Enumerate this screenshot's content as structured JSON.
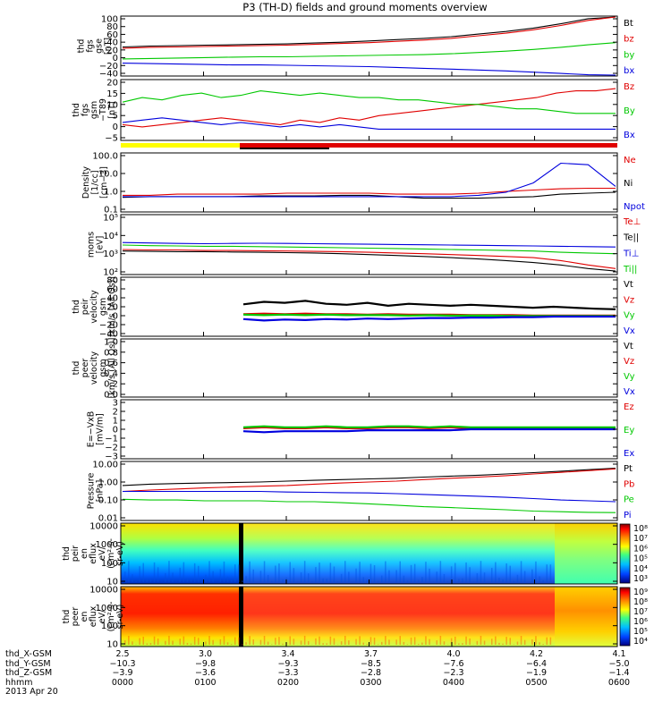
{
  "title": "P3 (TH-D) fields and ground moments overview",
  "colors": {
    "black": "#000000",
    "red": "#e00000",
    "green": "#00c800",
    "blue": "#0000dd",
    "yellow": "#ffff00"
  },
  "chart_data": [
    {
      "type": "line",
      "id": "p0",
      "ylabel": [
        "thd",
        "fgs",
        "gse",
        "[nT]"
      ],
      "yticks": [
        "100",
        "80",
        "60",
        "40",
        "20",
        "0",
        "−20",
        "−40"
      ],
      "ylim": [
        -40,
        100
      ],
      "series": [
        {
          "name": "Bt",
          "color": "#000000",
          "values": [
            28,
            30,
            31,
            32,
            33,
            34,
            35,
            37,
            39,
            42,
            45,
            48,
            52,
            58,
            64,
            72,
            82,
            94,
            102
          ]
        },
        {
          "name": "bz",
          "color": "#e00000",
          "values": [
            25,
            27,
            28,
            29,
            30,
            31,
            32,
            34,
            36,
            38,
            41,
            44,
            48,
            54,
            60,
            68,
            78,
            90,
            100
          ]
        },
        {
          "name": "by",
          "color": "#00c800",
          "values": [
            0,
            1,
            2,
            3,
            4,
            5,
            5,
            6,
            7,
            8,
            9,
            10,
            12,
            15,
            18,
            22,
            27,
            33,
            38
          ]
        },
        {
          "name": "bx",
          "color": "#0000dd",
          "values": [
            -10,
            -11,
            -12,
            -13,
            -14,
            -14,
            -15,
            -16,
            -17,
            -18,
            -20,
            -22,
            -24,
            -26,
            -28,
            -31,
            -34,
            -37,
            -40
          ]
        }
      ],
      "legend": [
        [
          "Bt",
          "#000000"
        ],
        [
          "bz",
          "#e00000"
        ],
        [
          "by",
          "#00c800"
        ],
        [
          "bx",
          "#0000dd"
        ]
      ]
    },
    {
      "type": "line",
      "id": "p1",
      "ylabel": [
        "thd",
        "fgs",
        "gsm",
        "−T89",
        "[nT]"
      ],
      "yticks": [
        "20",
        "15",
        "10",
        "5",
        "0",
        "−5"
      ],
      "ylim": [
        -7,
        20
      ],
      "series": [
        {
          "name": "Bz",
          "color": "#e00000",
          "values": [
            0,
            -1,
            0,
            1,
            2,
            3,
            2,
            1,
            0,
            2,
            1,
            3,
            2,
            4,
            5,
            6,
            7,
            8,
            9,
            10,
            11,
            12,
            14,
            15,
            15,
            16
          ]
        },
        {
          "name": "By",
          "color": "#00c800",
          "values": [
            10,
            12,
            11,
            13,
            14,
            12,
            13,
            15,
            14,
            13,
            14,
            13,
            12,
            12,
            11,
            11,
            10,
            9,
            9,
            8,
            7,
            7,
            6,
            5,
            5,
            5
          ]
        },
        {
          "name": "Bx",
          "color": "#0000dd",
          "values": [
            1,
            2,
            3,
            2,
            1,
            0,
            1,
            0,
            -1,
            0,
            -1,
            0,
            -1,
            -2,
            -2,
            -2,
            -2,
            -2,
            -2,
            -2,
            -2,
            -2,
            -2,
            -2,
            -2,
            -2
          ]
        }
      ],
      "legend": [
        [
          "Bz",
          "#e00000"
        ],
        [
          "By",
          "#00c800"
        ],
        [
          "Bx",
          "#0000dd"
        ]
      ]
    },
    {
      "type": "line",
      "id": "p2",
      "scale": "log",
      "ylabel": [
        "Density",
        "[1/cc]",
        "[cm−3]"
      ],
      "yticks": [
        "100.0",
        "10.0",
        "1.0",
        "0.1"
      ],
      "ylim": [
        0.1,
        100
      ],
      "series": [
        {
          "name": "Ne",
          "color": "#e00000",
          "values": [
            0.7,
            0.7,
            0.8,
            0.8,
            0.8,
            0.8,
            0.9,
            0.9,
            0.9,
            0.9,
            0.8,
            0.8,
            0.8,
            0.9,
            1.1,
            1.3,
            1.5,
            1.6,
            1.6
          ]
        },
        {
          "name": "Ni",
          "color": "#000000",
          "values": [
            0.55,
            0.6,
            0.6,
            0.6,
            0.6,
            0.65,
            0.65,
            0.65,
            0.7,
            0.7,
            0.6,
            0.5,
            0.5,
            0.5,
            0.55,
            0.6,
            0.8,
            0.9,
            1.0
          ]
        },
        {
          "name": "Npot",
          "color": "#0000dd",
          "values": [
            0.6,
            0.6,
            0.6,
            0.6,
            0.6,
            0.6,
            0.6,
            0.6,
            0.6,
            0.6,
            0.6,
            0.6,
            0.6,
            0.7,
            1.0,
            3.0,
            30,
            25,
            2
          ]
        }
      ],
      "legend": [
        [
          "Ne",
          "#e00000"
        ],
        [
          "Ni",
          "#000000"
        ],
        [
          "Npot",
          "#0000dd"
        ]
      ]
    },
    {
      "type": "line",
      "id": "p3",
      "scale": "log",
      "ylabel": [
        "moms",
        "[eV]"
      ],
      "yticks": [
        "10⁵",
        "10⁴",
        "10³",
        "10²"
      ],
      "ylim": [
        100,
        100000
      ],
      "series": [
        {
          "name": "Te⊥",
          "color": "#e00000",
          "values": [
            1800,
            1700,
            1700,
            1600,
            1600,
            1550,
            1500,
            1450,
            1400,
            1300,
            1200,
            1100,
            1000,
            900,
            800,
            700,
            500,
            300,
            200
          ]
        },
        {
          "name": "Te||",
          "color": "#000000",
          "values": [
            1500,
            1450,
            1400,
            1400,
            1350,
            1300,
            1250,
            1200,
            1100,
            1000,
            900,
            800,
            700,
            600,
            500,
            400,
            300,
            200,
            150
          ]
        },
        {
          "name": "Ti⊥",
          "color": "#0000dd",
          "values": [
            4000,
            3800,
            3600,
            3500,
            3600,
            3700,
            3600,
            3500,
            3400,
            3300,
            3200,
            3100,
            3000,
            2900,
            2800,
            2700,
            2600,
            2500,
            2400
          ]
        },
        {
          "name": "Ti||",
          "color": "#00c800",
          "values": [
            3000,
            2800,
            2700,
            2600,
            2600,
            2500,
            2400,
            2300,
            2200,
            2100,
            2000,
            1900,
            1800,
            1700,
            1600,
            1500,
            1300,
            1200,
            1100
          ]
        }
      ],
      "legend": [
        [
          "Te⊥",
          "#e00000"
        ],
        [
          "Te||",
          "#000000"
        ],
        [
          "Ti⊥",
          "#0000dd"
        ],
        [
          "Ti||",
          "#00c800"
        ]
      ]
    },
    {
      "type": "line",
      "id": "p4",
      "ylabel": [
        "thd",
        "peir",
        "velocity",
        "gsm",
        "[km/s (All Qs)]"
      ],
      "yticks": [
        "80",
        "60",
        "40",
        "20",
        "0",
        "−20",
        "−40"
      ],
      "ylim": [
        -40,
        80
      ],
      "series": [
        {
          "name": "Vt",
          "color": "#000000",
          "values": [
            25,
            30,
            28,
            32,
            26,
            24,
            28,
            22,
            26,
            24,
            22,
            24,
            22,
            20,
            18,
            20,
            18,
            16,
            15
          ]
        },
        {
          "name": "Vz",
          "color": "#e00000",
          "values": [
            5,
            6,
            5,
            6,
            5,
            5,
            4,
            5,
            4,
            4,
            4,
            3,
            3,
            3,
            2,
            2,
            2,
            2,
            2
          ]
        },
        {
          "name": "Vy",
          "color": "#00c800",
          "values": [
            4,
            3,
            4,
            3,
            4,
            3,
            3,
            3,
            2,
            3,
            2,
            2,
            2,
            1,
            1,
            1,
            1,
            1,
            1
          ]
        },
        {
          "name": "Vx",
          "color": "#0000dd",
          "values": [
            -5,
            -8,
            -6,
            -7,
            -5,
            -6,
            -4,
            -5,
            -4,
            -3,
            -3,
            -2,
            -2,
            -1,
            -1,
            0,
            0,
            0,
            0
          ]
        }
      ],
      "legend": [
        [
          "Vt",
          "#000000"
        ],
        [
          "Vz",
          "#e00000"
        ],
        [
          "Vy",
          "#00c800"
        ],
        [
          "Vx",
          "#0000dd"
        ]
      ]
    },
    {
      "type": "line",
      "id": "p5",
      "ylabel": [
        "thd",
        "peer",
        "velocity",
        "gsm",
        "[km/s (All Qs)]"
      ],
      "yticks": [
        "1.0",
        "0.8",
        "0.6",
        "0.4",
        "0.2",
        "0.0"
      ],
      "ylim": [
        0,
        1
      ],
      "series": [],
      "legend": [
        [
          "Vt",
          "#000000"
        ],
        [
          "Vz",
          "#e00000"
        ],
        [
          "Vy",
          "#00c800"
        ],
        [
          "Vx",
          "#0000dd"
        ]
      ]
    },
    {
      "type": "line",
      "id": "p6",
      "ylabel": [
        "E=−VxB",
        "[mV/m]"
      ],
      "yticks": [
        "3",
        "2",
        "1",
        "0",
        "−1",
        "−2",
        "−3"
      ],
      "ylim": [
        -3,
        3
      ],
      "series": [
        {
          "name": "Ez",
          "color": "#e00000",
          "values": [
            0.1,
            0.2,
            0.1,
            0.1,
            0.2,
            0.1,
            0.1,
            0.2,
            0.2,
            0.1,
            0.2,
            0.1,
            0.1,
            0.1,
            0.1,
            0.1,
            0.1,
            0.1,
            0.1
          ]
        },
        {
          "name": "Ey",
          "color": "#00c800",
          "values": [
            0.2,
            0.3,
            0.2,
            0.2,
            0.3,
            0.2,
            0.2,
            0.3,
            0.3,
            0.2,
            0.3,
            0.2,
            0.2,
            0.2,
            0.2,
            0.2,
            0.2,
            0.2,
            0.2
          ]
        },
        {
          "name": "Ex",
          "color": "#0000dd",
          "values": [
            -0.2,
            -0.3,
            -0.2,
            -0.2,
            -0.2,
            -0.2,
            -0.1,
            -0.1,
            -0.1,
            -0.1,
            -0.1,
            0,
            0,
            0,
            0,
            0,
            0,
            0,
            0
          ]
        }
      ],
      "legend": [
        [
          "Ez",
          "#e00000"
        ],
        [
          "Ey",
          "#00c800"
        ],
        [
          "Ex",
          "#0000dd"
        ]
      ]
    },
    {
      "type": "line",
      "id": "p7",
      "scale": "log",
      "ylabel": [
        "Pressure",
        "[nPa]"
      ],
      "yticks": [
        "10.00",
        "1.00",
        "0.10",
        "0.01"
      ],
      "ylim": [
        0.01,
        10
      ],
      "series": [
        {
          "name": "Pt",
          "color": "#000000",
          "values": [
            0.6,
            0.7,
            0.75,
            0.8,
            0.85,
            0.9,
            1.0,
            1.1,
            1.2,
            1.3,
            1.4,
            1.6,
            1.8,
            2.0,
            2.3,
            2.7,
            3.2,
            3.8,
            4.5
          ]
        },
        {
          "name": "Pb",
          "color": "#e00000",
          "values": [
            0.3,
            0.35,
            0.4,
            0.45,
            0.5,
            0.55,
            0.6,
            0.7,
            0.8,
            0.9,
            1.0,
            1.2,
            1.4,
            1.6,
            1.9,
            2.3,
            2.8,
            3.4,
            4.2
          ]
        },
        {
          "name": "Pe",
          "color": "#00c800",
          "values": [
            0.12,
            0.11,
            0.11,
            0.1,
            0.1,
            0.1,
            0.09,
            0.09,
            0.08,
            0.07,
            0.06,
            0.05,
            0.045,
            0.04,
            0.035,
            0.03,
            0.028,
            0.026,
            0.025
          ]
        },
        {
          "name": "Pi",
          "color": "#0000dd",
          "values": [
            0.3,
            0.3,
            0.3,
            0.3,
            0.3,
            0.3,
            0.28,
            0.27,
            0.26,
            0.25,
            0.23,
            0.21,
            0.19,
            0.17,
            0.15,
            0.13,
            0.11,
            0.1,
            0.09
          ]
        }
      ],
      "legend": [
        [
          "Pt",
          "#000000"
        ],
        [
          "Pb",
          "#e00000"
        ],
        [
          "Pe",
          "#00c800"
        ],
        [
          "Pi",
          "#0000dd"
        ]
      ]
    },
    {
      "type": "heatmap",
      "id": "p8",
      "ylabel": [
        "thd",
        "peir",
        "en",
        "eflux",
        "eV/",
        "(cm²-s-",
        "sr-eV)"
      ],
      "yticks": [
        "10000",
        "1000",
        "100",
        "10"
      ],
      "ylim": [
        5,
        30000
      ],
      "colorbar": [
        "10⁸",
        "10⁷",
        "10⁶",
        "10⁵",
        "10⁴",
        "10³"
      ]
    },
    {
      "type": "heatmap",
      "id": "p9",
      "ylabel": [
        "thd",
        "peer",
        "en",
        "eflux",
        "eV/",
        "(cm²-s-",
        "sr-eV)"
      ],
      "yticks": [
        "10000",
        "1000",
        "100",
        "10"
      ],
      "ylim": [
        5,
        30000
      ],
      "colorbar": [
        "10⁹",
        "10⁸",
        "10⁷",
        "10⁶",
        "10⁵",
        "10⁴"
      ]
    }
  ],
  "footer": {
    "rows": [
      {
        "label": "thd_X-GSM",
        "values": [
          "2.5",
          "3.0",
          "3.4",
          "3.7",
          "4.0",
          "4.2",
          "4.1"
        ]
      },
      {
        "label": "thd_Y-GSM",
        "values": [
          "−10.3",
          "−9.8",
          "−9.3",
          "−8.5",
          "−7.6",
          "−6.4",
          "−5.0"
        ]
      },
      {
        "label": "thd_Z-GSM",
        "values": [
          "−3.9",
          "−3.6",
          "−3.3",
          "−2.8",
          "−2.3",
          "−1.9",
          "−1.4"
        ]
      },
      {
        "label": "hhmm",
        "values": [
          "0000",
          "0100",
          "0200",
          "0300",
          "0400",
          "0500",
          "0600"
        ]
      }
    ],
    "date": "2013 Apr 20"
  }
}
